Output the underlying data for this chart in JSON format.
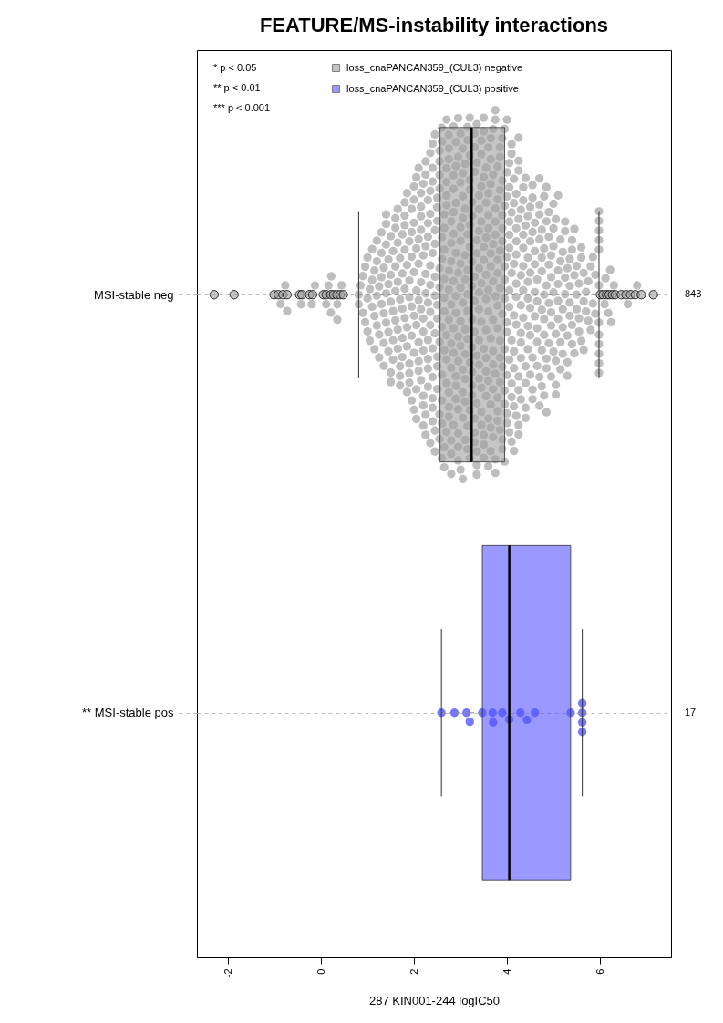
{
  "chart_data": {
    "type": "box",
    "orientation": "horizontal",
    "title": "FEATURE/MS-instability interactions",
    "xlabel": "287 KIN001-244 logIC50",
    "categories": [
      "MSI-stable neg",
      "** MSI-stable pos"
    ],
    "xlim": [
      -2.67,
      7.53
    ],
    "xticks": [
      -2,
      0,
      2,
      4,
      6
    ],
    "grid": "y",
    "legend": "top",
    "marker": "circle",
    "annotations": [
      "* p < 0.05",
      "** p < 0.01",
      "*** p < 0.001",
      "843",
      "17"
    ],
    "series": [
      {
        "name": "loss_cnaPANCAN359_(CUL3) negative",
        "color": "#a0a0a0",
        "boxes": [
          {
            "low": 0.81,
            "q1": 2.56,
            "median": 3.24,
            "q3": 3.95,
            "high": 5.98,
            "outliers": [
              -2.3,
              -1.87,
              -1.01,
              -0.92,
              -0.82,
              -0.73,
              -0.46,
              -0.41,
              -0.25,
              -0.18,
              0.05,
              0.11,
              0.21,
              0.27,
              0.34,
              0.41,
              0.48,
              6.01,
              6.07,
              6.14,
              6.2,
              6.27,
              6.33,
              6.46,
              6.56,
              6.66,
              6.76,
              6.89,
              7.15
            ]
          },
          null
        ]
      },
      {
        "name": "loss_cnaPANCAN359_(CUL3) positive",
        "color": "#5555ff",
        "boxes": [
          null,
          {
            "low": 2.59,
            "q1": 3.47,
            "median": 4.05,
            "q3": 5.37,
            "high": 5.62
          }
        ]
      },
      {
        "type": "scatter",
        "color": "#bebebe",
        "values": [
          -0.87,
          -0.77,
          -0.73,
          -0.43,
          -0.2,
          -0.13,
          0.11,
          0.16,
          0.21,
          0.22,
          0.35,
          0.35,
          0.44,
          0.81,
          0.81,
          0.85,
          0.9,
          0.9,
          0.95,
          0.95,
          1,
          1,
          1,
          1.05,
          1.05,
          1.1,
          1.1,
          1.1,
          1.15,
          1.15,
          1.15,
          1.2,
          1.2,
          1.2,
          1.2,
          1.25,
          1.25,
          1.25,
          1.3,
          1.3,
          1.3,
          1.3,
          1.35,
          1.35,
          1.35,
          1.35,
          1.4,
          1.4,
          1.4,
          1.4,
          1.4,
          1.45,
          1.45,
          1.45,
          1.45,
          1.5,
          1.5,
          1.5,
          1.5,
          1.5,
          1.55,
          1.55,
          1.55,
          1.55,
          1.6,
          1.6,
          1.6,
          1.6,
          1.6,
          1.65,
          1.65,
          1.65,
          1.65,
          1.65,
          1.7,
          1.7,
          1.7,
          1.7,
          1.7,
          1.75,
          1.75,
          1.75,
          1.75,
          1.75,
          1.8,
          1.8,
          1.8,
          1.8,
          1.8,
          1.8,
          1.85,
          1.85,
          1.85,
          1.85,
          1.85,
          1.9,
          1.9,
          1.9,
          1.9,
          1.9,
          1.9,
          1.95,
          1.95,
          1.95,
          1.95,
          1.95,
          1.95,
          2,
          2,
          2,
          2,
          2,
          2,
          2,
          2.05,
          2.05,
          2.05,
          2.05,
          2.05,
          2.05,
          2.1,
          2.1,
          2.1,
          2.1,
          2.1,
          2.1,
          2.1,
          2.15,
          2.15,
          2.15,
          2.15,
          2.15,
          2.15,
          2.15,
          2.2,
          2.2,
          2.2,
          2.2,
          2.2,
          2.2,
          2.2,
          2.2,
          2.25,
          2.25,
          2.25,
          2.25,
          2.25,
          2.25,
          2.25,
          2.3,
          2.3,
          2.3,
          2.3,
          2.3,
          2.3,
          2.3,
          2.3,
          2.35,
          2.35,
          2.35,
          2.35,
          2.35,
          2.35,
          2.35,
          2.35,
          2.4,
          2.4,
          2.4,
          2.4,
          2.4,
          2.4,
          2.4,
          2.4,
          2.4,
          2.45,
          2.45,
          2.45,
          2.45,
          2.45,
          2.45,
          2.45,
          2.45,
          2.5,
          2.5,
          2.5,
          2.5,
          2.5,
          2.5,
          2.5,
          2.5,
          2.55,
          2.55,
          2.55,
          2.55,
          2.55,
          2.55,
          2.55,
          2.55,
          2.55,
          2.6,
          2.6,
          2.6,
          2.6,
          2.6,
          2.6,
          2.6,
          2.6,
          2.6,
          2.65,
          2.65,
          2.65,
          2.65,
          2.65,
          2.65,
          2.65,
          2.65,
          2.65,
          2.7,
          2.7,
          2.7,
          2.7,
          2.7,
          2.7,
          2.7,
          2.7,
          2.7,
          2.75,
          2.75,
          2.75,
          2.75,
          2.75,
          2.75,
          2.75,
          2.75,
          2.75,
          2.8,
          2.8,
          2.8,
          2.8,
          2.8,
          2.8,
          2.8,
          2.8,
          2.8,
          2.85,
          2.85,
          2.85,
          2.85,
          2.85,
          2.85,
          2.85,
          2.85,
          2.85,
          2.9,
          2.9,
          2.9,
          2.9,
          2.9,
          2.9,
          2.9,
          2.9,
          2.9,
          2.95,
          2.95,
          2.95,
          2.95,
          2.95,
          2.95,
          2.95,
          2.95,
          2.95,
          3,
          3,
          3,
          3,
          3,
          3,
          3,
          3,
          3,
          3.05,
          3.05,
          3.05,
          3.05,
          3.05,
          3.05,
          3.05,
          3.05,
          3.05,
          3.1,
          3.1,
          3.1,
          3.1,
          3.1,
          3.1,
          3.1,
          3.1,
          3.1,
          3.15,
          3.15,
          3.15,
          3.15,
          3.15,
          3.15,
          3.15,
          3.15,
          3.15,
          3.2,
          3.2,
          3.2,
          3.2,
          3.2,
          3.2,
          3.2,
          3.2,
          3.2,
          3.25,
          3.25,
          3.25,
          3.25,
          3.25,
          3.25,
          3.25,
          3.25,
          3.25,
          3.3,
          3.3,
          3.3,
          3.3,
          3.3,
          3.3,
          3.3,
          3.3,
          3.3,
          3.35,
          3.35,
          3.35,
          3.35,
          3.35,
          3.35,
          3.35,
          3.35,
          3.35,
          3.4,
          3.4,
          3.4,
          3.4,
          3.4,
          3.4,
          3.4,
          3.4,
          3.4,
          3.45,
          3.45,
          3.45,
          3.45,
          3.45,
          3.45,
          3.45,
          3.45,
          3.45,
          3.5,
          3.5,
          3.5,
          3.5,
          3.5,
          3.5,
          3.5,
          3.5,
          3.5,
          3.55,
          3.55,
          3.55,
          3.55,
          3.55,
          3.55,
          3.55,
          3.55,
          3.55,
          3.6,
          3.6,
          3.6,
          3.6,
          3.6,
          3.6,
          3.6,
          3.6,
          3.6,
          3.65,
          3.65,
          3.65,
          3.65,
          3.65,
          3.65,
          3.65,
          3.65,
          3.65,
          3.7,
          3.7,
          3.7,
          3.7,
          3.7,
          3.7,
          3.7,
          3.7,
          3.7,
          3.75,
          3.75,
          3.75,
          3.75,
          3.75,
          3.75,
          3.75,
          3.75,
          3.75,
          3.8,
          3.8,
          3.8,
          3.8,
          3.8,
          3.8,
          3.8,
          3.8,
          3.8,
          3.85,
          3.85,
          3.85,
          3.85,
          3.85,
          3.85,
          3.85,
          3.85,
          3.85,
          3.9,
          3.9,
          3.9,
          3.9,
          3.9,
          3.9,
          3.9,
          3.9,
          3.9,
          3.95,
          3.95,
          3.95,
          3.95,
          3.95,
          3.95,
          3.95,
          3.95,
          3.95,
          4,
          4,
          4,
          4,
          4,
          4,
          4,
          4,
          4,
          4.05,
          4.05,
          4.05,
          4.05,
          4.05,
          4.05,
          4.05,
          4.05,
          4.05,
          4.1,
          4.1,
          4.1,
          4.1,
          4.1,
          4.1,
          4.1,
          4.1,
          4.15,
          4.15,
          4.15,
          4.15,
          4.15,
          4.15,
          4.15,
          4.15,
          4.2,
          4.2,
          4.2,
          4.2,
          4.2,
          4.2,
          4.2,
          4.2,
          4.25,
          4.25,
          4.25,
          4.25,
          4.25,
          4.25,
          4.25,
          4.25,
          4.3,
          4.3,
          4.3,
          4.3,
          4.3,
          4.3,
          4.3,
          4.35,
          4.35,
          4.35,
          4.35,
          4.35,
          4.35,
          4.35,
          4.4,
          4.4,
          4.4,
          4.4,
          4.4,
          4.4,
          4.45,
          4.45,
          4.45,
          4.45,
          4.45,
          4.45,
          4.5,
          4.5,
          4.5,
          4.5,
          4.5,
          4.5,
          4.55,
          4.55,
          4.55,
          4.55,
          4.55,
          4.55,
          4.6,
          4.6,
          4.6,
          4.6,
          4.6,
          4.65,
          4.65,
          4.65,
          4.65,
          4.65,
          4.7,
          4.7,
          4.7,
          4.7,
          4.7,
          4.7,
          4.75,
          4.75,
          4.75,
          4.75,
          4.75,
          4.75,
          4.8,
          4.8,
          4.8,
          4.8,
          4.8,
          4.8,
          4.85,
          4.85,
          4.85,
          4.85,
          4.85,
          4.85,
          4.9,
          4.9,
          4.9,
          4.9,
          4.9,
          4.95,
          4.95,
          4.95,
          4.95,
          4.95,
          5,
          5,
          5,
          5,
          5,
          5.05,
          5.05,
          5.05,
          5.05,
          5.05,
          5.1,
          5.1,
          5.1,
          5.1,
          5.1,
          5.15,
          5.15,
          5.15,
          5.15,
          5.2,
          5.2,
          5.2,
          5.2,
          5.25,
          5.25,
          5.25,
          5.25,
          5.3,
          5.3,
          5.3,
          5.3,
          5.35,
          5.35,
          5.35,
          5.35,
          5.4,
          5.4,
          5.4,
          5.4,
          5.45,
          5.45,
          5.45,
          5.5,
          5.5,
          5.5,
          5.55,
          5.55,
          5.55,
          5.6,
          5.6,
          5.6,
          5.65,
          5.65,
          5.65,
          5.7,
          5.7,
          5.75,
          5.75,
          5.8,
          5.8,
          5.85,
          5.85,
          5.9,
          5.9,
          5.98,
          5.98,
          5.98,
          5.98,
          5.98,
          5.98,
          5.98,
          5.98,
          5.98,
          5.98,
          5.98,
          5.98,
          6.1,
          6.12,
          6.18,
          6.22,
          6.24,
          6.3,
          6.6,
          6.8
        ],
        "x": [
          "MSI-stable neg",
          "MSI-stable neg",
          "MSI-stable neg",
          "MSI-stable neg",
          "MSI-stable neg",
          "MSI-stable neg",
          "MSI-stable neg",
          "MSI-stable neg",
          "MSI-stable neg",
          "MSI-stable neg",
          "MSI-stable neg",
          "MSI-stable neg",
          "MSI-stable neg",
          "MSI-stable neg",
          "MSI-stable neg",
          "MSI-stable neg",
          "MSI-stable neg",
          "MSI-stable neg",
          "MSI-stable neg",
          "MSI-stable neg",
          "MSI-stable neg",
          "MSI-stable neg",
          "MSI-stable neg",
          "MSI-stable neg",
          "MSI-stable neg",
          "MSI-stable neg",
          "MSI-stable neg",
          "MSI-stable neg",
          "MSI-stable neg",
          "MSI-stable neg",
          "MSI-stable neg",
          "MSI-stable neg",
          "MSI-stable neg",
          "MSI-stable neg",
          "MSI-stable neg",
          "MSI-stable neg",
          "MSI-stable neg",
          "MSI-stable neg",
          "MSI-stable neg",
          "MSI-stable neg",
          "MSI-stable neg",
          "MSI-stable neg",
          "MSI-stable neg",
          "MSI-stable neg",
          "MSI-stable neg",
          "MSI-stable neg",
          "MSI-stable neg",
          "MSI-stable neg",
          "MSI-stable neg",
          "MSI-stable neg",
          "MSI-stable neg",
          "MSI-stable neg",
          "MSI-stable neg",
          "MSI-stable neg",
          "MSI-stable neg",
          "MSI-stable neg",
          "MSI-stable neg",
          "MSI-stable neg",
          "MSI-stable neg",
          "MSI-stable neg",
          "MSI-stable neg",
          "MSI-stable neg",
          "MSI-stable neg",
          "MSI-stable neg",
          "MSI-stable neg",
          "MSI-stable neg",
          "MSI-stable neg",
          "MSI-stable neg",
          "MSI-stable neg",
          "MSI-stable neg",
          "MSI-stable neg",
          "MSI-stable neg",
          "MSI-stable neg",
          "MSI-stable neg",
          "MSI-stable neg",
          "MSI-stable neg",
          "MSI-stable neg",
          "MSI-stable neg",
          "MSI-stable neg",
          "MSI-stable neg",
          "MSI-stable neg",
          "MSI-stable neg",
          "MSI-stable neg",
          "MSI-stable neg",
          "MSI-stable neg",
          "MSI-stable neg",
          "MSI-stable neg",
          "MSI-stable neg",
          "MSI-stable neg",
          "MSI-stable neg",
          "MSI-stable neg",
          "MSI-stable neg",
          "MSI-stable neg",
          "MSI-stable neg",
          "MSI-stable neg",
          "MSI-stable neg",
          "MSI-stable neg",
          "MSI-stable neg",
          "MSI-stable neg",
          "MSI-stable neg",
          "MSI-stable neg",
          "MSI-stable neg",
          "MSI-stable neg",
          "MSI-stable neg",
          "MSI-stable neg",
          "MSI-stable neg",
          "MSI-stable neg",
          "MSI-stable neg",
          "MSI-stable neg",
          "MSI-stable neg",
          "MSI-stable neg",
          "MSI-stable neg",
          "MSI-stable neg",
          "MSI-stable neg",
          "MSI-stable neg",
          "MSI-stable neg",
          "MSI-stable neg",
          "MSI-stable neg",
          "MSI-stable neg",
          "MSI-stable neg",
          "MSI-stable neg",
          "MSI-stable neg",
          "MSI-stable neg",
          "MSI-stable neg",
          "MSI-stable neg",
          "MSI-stable neg",
          "MSI-stable neg",
          "MSI-stable neg",
          "MSI-stable neg",
          "MSI-stable neg",
          "MSI-stable neg",
          "MSI-stable neg",
          "MSI-stable neg",
          "MSI-stable neg",
          "MSI-stable neg",
          "MSI-stable neg",
          "MSI-stable neg",
          "MSI-stable neg",
          "MSI-stable neg",
          "MSI-stable neg",
          "MSI-stable neg",
          "MSI-stable neg",
          "MSI-stable neg",
          "MSI-stable neg",
          "MSI-stable neg",
          "MSI-stable neg",
          "MSI-stable neg",
          "MSI-stable neg",
          "MSI-stable neg",
          "MSI-stable neg",
          "MSI-stable neg",
          "MSI-stable neg",
          "MSI-stable neg",
          "MSI-stable neg",
          "MSI-stable neg",
          "MSI-stable neg",
          "MSI-stable neg",
          "MSI-stable neg",
          "MSI-stable neg",
          "MSI-stable neg",
          "MSI-stable neg",
          "MSI-stable neg",
          "MSI-stable neg",
          "MSI-stable neg",
          "MSI-stable neg",
          "MSI-stable neg",
          "MSI-stable neg",
          "MSI-stable neg",
          "MSI-stable neg",
          "MSI-stable neg",
          "MSI-stable neg",
          "MSI-stable neg",
          "MSI-stable neg",
          "MSI-stable neg",
          "MSI-stable neg",
          "MSI-stable neg",
          "MSI-stable neg",
          "MSI-stable neg",
          "MSI-stable neg",
          "MSI-stable neg",
          "MSI-stable neg",
          "MSI-stable neg",
          "MSI-stable neg",
          "MSI-stable neg",
          "MSI-stable neg",
          "MSI-stable neg",
          "MSI-stable neg",
          "MSI-stable neg",
          "MSI-stable neg",
          "MSI-stable neg",
          "MSI-stable neg",
          "MSI-stable neg",
          "MSI-stable neg",
          "MSI-stable neg",
          "MSI-stable neg",
          "MSI-stable neg",
          "MSI-stable neg",
          "MSI-stable neg",
          "MSI-stable neg",
          "MSI-stable neg",
          "MSI-stable neg",
          "MSI-stable neg",
          "MSI-stable neg",
          "MSI-stable neg",
          "MSI-stable neg",
          "MSI-stable neg",
          "MSI-stable neg",
          "MSI-stable neg",
          "MSI-stable neg",
          "MSI-stable neg",
          "MSI-stable neg",
          "MSI-stable neg",
          "MSI-stable neg",
          "MSI-stable neg",
          "MSI-stable neg",
          "MSI-stable neg",
          "MSI-stable neg",
          "MSI-stable neg",
          "MSI-stable neg",
          "MSI-stable neg",
          "MSI-stable neg",
          "MSI-stable neg",
          "MSI-stable neg",
          "MSI-stable neg",
          "MSI-stable neg",
          "MSI-stable neg",
          "MSI-stable neg",
          "MSI-stable neg",
          "MSI-stable neg",
          "MSI-stable neg",
          "MSI-stable neg",
          "MSI-stable neg",
          "MSI-stable neg",
          "MSI-stable neg",
          "MSI-stable neg",
          "MSI-stable neg",
          "MSI-stable neg",
          "MSI-stable neg",
          "MSI-stable neg",
          "MSI-stable neg",
          "MSI-stable neg",
          "MSI-stable neg",
          "MSI-stable neg",
          "MSI-stable neg",
          "MSI-stable neg",
          "MSI-stable neg",
          "MSI-stable neg",
          "MSI-stable neg",
          "MSI-stable neg",
          "MSI-stable neg",
          "MSI-stable neg",
          "MSI-stable neg",
          "MSI-stable neg",
          "MSI-stable neg",
          "MSI-stable neg",
          "MSI-stable neg",
          "MSI-stable neg",
          "MSI-stable neg",
          "MSI-stable neg",
          "MSI-stable neg",
          "MSI-stable neg",
          "MSI-stable neg",
          "MSI-stable neg",
          "MSI-stable neg",
          "MSI-stable neg",
          "MSI-stable neg",
          "MSI-stable neg",
          "MSI-stable neg",
          "MSI-stable neg",
          "MSI-stable neg",
          "MSI-stable neg",
          "MSI-stable neg",
          "MSI-stable neg",
          "MSI-stable neg",
          "MSI-stable neg",
          "MSI-stable neg",
          "MSI-stable neg",
          "MSI-stable neg",
          "MSI-stable neg",
          "MSI-stable neg",
          "MSI-stable neg",
          "MSI-stable neg",
          "MSI-stable neg",
          "MSI-stable neg",
          "MSI-stable neg",
          "MSI-stable neg",
          "MSI-stable neg",
          "MSI-stable neg",
          "MSI-stable neg",
          "MSI-stable neg",
          "MSI-stable neg",
          "MSI-stable neg",
          "MSI-stable neg",
          "MSI-stable neg",
          "MSI-stable neg",
          "MSI-stable neg",
          "MSI-stable neg",
          "MSI-stable neg",
          "MSI-stable neg",
          "MSI-stable neg",
          "MSI-stable neg",
          "MSI-stable neg",
          "MSI-stable neg",
          "MSI-stable neg",
          "MSI-stable neg",
          "MSI-stable neg",
          "MSI-stable neg",
          "MSI-stable neg",
          "MSI-stable neg",
          "MSI-stable neg",
          "MSI-stable neg",
          "MSI-stable neg",
          "MSI-stable neg",
          "MSI-stable neg",
          "MSI-stable neg",
          "MSI-stable neg",
          "MSI-stable neg",
          "MSI-stable neg",
          "MSI-stable neg",
          "MSI-stable neg",
          "MSI-stable neg",
          "MSI-stable neg",
          "MSI-stable neg",
          "MSI-stable neg",
          "MSI-stable neg",
          "MSI-stable neg",
          "MSI-stable neg",
          "MSI-stable neg",
          "MSI-stable neg",
          "MSI-stable neg",
          "MSI-stable neg",
          "MSI-stable neg",
          "MSI-stable neg",
          "MSI-stable neg",
          "MSI-stable neg",
          "MSI-stable neg",
          "MSI-stable neg",
          "MSI-stable neg",
          "MSI-stable neg",
          "MSI-stable neg",
          "MSI-stable neg",
          "MSI-stable neg",
          "MSI-stable neg",
          "MSI-stable neg",
          "MSI-stable neg",
          "MSI-stable neg",
          "MSI-stable neg",
          "MSI-stable neg",
          "MSI-stable neg",
          "MSI-stable neg",
          "MSI-stable neg",
          "MSI-stable neg",
          "MSI-stable neg",
          "MSI-stable neg",
          "MSI-stable neg",
          "MSI-stable neg",
          "MSI-stable neg",
          "MSI-stable neg",
          "MSI-stable neg",
          "MSI-stable neg",
          "MSI-stable neg",
          "MSI-stable neg",
          "MSI-stable neg",
          "MSI-stable neg",
          "MSI-stable neg",
          "MSI-stable neg",
          "MSI-stable neg",
          "MSI-stable neg",
          "MSI-stable neg",
          "MSI-stable neg",
          "MSI-stable neg",
          "MSI-stable neg",
          "MSI-stable neg",
          "MSI-stable neg",
          "MSI-stable neg",
          "MSI-stable neg",
          "MSI-stable neg",
          "MSI-stable neg",
          "MSI-stable neg",
          "MSI-stable neg",
          "MSI-stable neg",
          "MSI-stable neg",
          "MSI-stable neg",
          "MSI-stable neg",
          "MSI-stable neg",
          "MSI-stable neg",
          "MSI-stable neg",
          "MSI-stable neg",
          "MSI-stable neg",
          "MSI-stable neg",
          "MSI-stable neg",
          "MSI-stable neg",
          "MSI-stable neg",
          "MSI-stable neg",
          "MSI-stable neg",
          "MSI-stable neg",
          "MSI-stable neg",
          "MSI-stable neg",
          "MSI-stable neg",
          "MSI-stable neg",
          "MSI-stable neg",
          "MSI-stable neg",
          "MSI-stable neg",
          "MSI-stable neg",
          "MSI-stable neg",
          "MSI-stable neg",
          "MSI-stable neg",
          "MSI-stable neg",
          "MSI-stable neg",
          "MSI-stable neg",
          "MSI-stable neg",
          "MSI-stable neg",
          "MSI-stable neg",
          "MSI-stable neg",
          "MSI-stable neg",
          "MSI-stable neg",
          "MSI-stable neg",
          "MSI-stable neg",
          "MSI-stable neg",
          "MSI-stable neg",
          "MSI-stable neg",
          "MSI-stable neg",
          "MSI-stable neg",
          "MSI-stable neg",
          "MSI-stable neg",
          "MSI-stable neg",
          "MSI-stable neg",
          "MSI-stable neg",
          "MSI-stable neg",
          "MSI-stable neg",
          "MSI-stable neg",
          "MSI-stable neg",
          "MSI-stable neg",
          "MSI-stable neg",
          "MSI-stable neg",
          "MSI-stable neg",
          "MSI-stable neg",
          "MSI-stable neg",
          "MSI-stable neg",
          "MSI-stable neg",
          "MSI-stable neg",
          "MSI-stable neg",
          "MSI-stable neg",
          "MSI-stable neg",
          "MSI-stable neg",
          "MSI-stable neg",
          "MSI-stable neg",
          "MSI-stable neg",
          "MSI-stable neg",
          "MSI-stable neg",
          "MSI-stable neg",
          "MSI-stable neg",
          "MSI-stable neg",
          "MSI-stable neg",
          "MSI-stable neg",
          "MSI-stable neg",
          "MSI-stable neg",
          "MSI-stable neg",
          "MSI-stable neg",
          "MSI-stable neg",
          "MSI-stable neg",
          "MSI-stable neg",
          "MSI-stable neg",
          "MSI-stable neg",
          "MSI-stable neg",
          "MSI-stable neg",
          "MSI-stable neg",
          "MSI-stable neg",
          "MSI-stable neg",
          "MSI-stable neg",
          "MSI-stable neg",
          "MSI-stable neg",
          "MSI-stable neg",
          "MSI-stable neg",
          "MSI-stable neg",
          "MSI-stable neg",
          "MSI-stable neg",
          "MSI-stable neg",
          "MSI-stable neg",
          "MSI-stable neg",
          "MSI-stable neg",
          "MSI-stable neg",
          "MSI-stable neg",
          "MSI-stable neg",
          "MSI-stable neg",
          "MSI-stable neg",
          "MSI-stable neg",
          "MSI-stable neg",
          "MSI-stable neg",
          "MSI-stable neg",
          "MSI-stable neg",
          "MSI-stable neg",
          "MSI-stable neg",
          "MSI-stable neg",
          "MSI-stable neg",
          "MSI-stable neg",
          "MSI-stable neg",
          "MSI-stable neg",
          "MSI-stable neg",
          "MSI-stable neg",
          "MSI-stable neg",
          "MSI-stable neg",
          "MSI-stable neg",
          "MSI-stable neg",
          "MSI-stable neg",
          "MSI-stable neg",
          "MSI-stable neg",
          "MSI-stable neg",
          "MSI-stable neg",
          "MSI-stable neg",
          "MSI-stable neg",
          "MSI-stable neg",
          "MSI-stable neg",
          "MSI-stable neg",
          "MSI-stable neg",
          "MSI-stable neg",
          "MSI-stable neg",
          "MSI-stable neg",
          "MSI-stable neg",
          "MSI-stable neg",
          "MSI-stable neg",
          "MSI-stable neg",
          "MSI-stable neg",
          "MSI-stable neg",
          "MSI-stable neg",
          "MSI-stable neg",
          "MSI-stable neg",
          "MSI-stable neg",
          "MSI-stable neg",
          "MSI-stable neg",
          "MSI-stable neg",
          "MSI-stable neg",
          "MSI-stable neg",
          "MSI-stable neg",
          "MSI-stable neg",
          "MSI-stable neg",
          "MSI-stable neg",
          "MSI-stable neg",
          "MSI-stable neg",
          "MSI-stable neg",
          "MSI-stable neg",
          "MSI-stable neg",
          "MSI-stable neg",
          "MSI-stable neg",
          "MSI-stable neg",
          "MSI-stable neg",
          "MSI-stable neg",
          "MSI-stable neg",
          "MSI-stable neg",
          "MSI-stable neg",
          "MSI-stable neg",
          "MSI-stable neg",
          "MSI-stable neg",
          "MSI-stable neg",
          "MSI-stable neg",
          "MSI-stable neg",
          "MSI-stable neg",
          "MSI-stable neg",
          "MSI-stable neg",
          "MSI-stable neg",
          "MSI-stable neg",
          "MSI-stable neg",
          "MSI-stable neg",
          "MSI-stable neg",
          "MSI-stable neg",
          "MSI-stable neg",
          "MSI-stable neg",
          "MSI-stable neg",
          "MSI-stable neg",
          "MSI-stable neg",
          "MSI-stable neg",
          "MSI-stable neg",
          "MSI-stable neg",
          "MSI-stable neg",
          "MSI-stable neg",
          "MSI-stable neg",
          "MSI-stable neg",
          "MSI-stable neg",
          "MSI-stable neg",
          "MSI-stable neg",
          "MSI-stable neg",
          "MSI-stable neg",
          "MSI-stable neg",
          "MSI-stable neg",
          "MSI-stable neg",
          "MSI-stable neg",
          "MSI-stable neg",
          "MSI-stable neg",
          "MSI-stable neg",
          "MSI-stable neg",
          "MSI-stable neg",
          "MSI-stable neg",
          "MSI-stable neg",
          "MSI-stable neg",
          "MSI-stable neg",
          "MSI-stable neg",
          "MSI-stable neg",
          "MSI-stable neg",
          "MSI-stable neg",
          "MSI-stable neg",
          "MSI-stable neg",
          "MSI-stable neg",
          "MSI-stable neg",
          "MSI-stable neg",
          "MSI-stable neg",
          "MSI-stable neg",
          "MSI-stable neg",
          "MSI-stable neg",
          "MSI-stable neg",
          "MSI-stable neg",
          "MSI-stable neg",
          "MSI-stable neg",
          "MSI-stable neg",
          "MSI-stable neg",
          "MSI-stable neg",
          "MSI-stable neg",
          "MSI-stable neg",
          "MSI-stable neg",
          "MSI-stable neg",
          "MSI-stable neg",
          "MSI-stable neg",
          "MSI-stable neg",
          "MSI-stable neg",
          "MSI-stable neg",
          "MSI-stable neg",
          "MSI-stable neg",
          "MSI-stable neg",
          "MSI-stable neg",
          "MSI-stable neg",
          "MSI-stable neg",
          "MSI-stable neg",
          "MSI-stable neg",
          "MSI-stable neg",
          "MSI-stable neg",
          "MSI-stable neg",
          "MSI-stable neg",
          "MSI-stable neg",
          "MSI-stable neg",
          "MSI-stable neg",
          "MSI-stable neg",
          "MSI-stable neg",
          "MSI-stable neg",
          "MSI-stable neg",
          "MSI-stable neg",
          "MSI-stable neg",
          "MSI-stable neg",
          "MSI-stable neg",
          "MSI-stable neg",
          "MSI-stable neg",
          "MSI-stable neg",
          "MSI-stable neg",
          "MSI-stable neg",
          "MSI-stable neg",
          "MSI-stable neg",
          "MSI-stable neg",
          "MSI-stable neg",
          "MSI-stable neg",
          "MSI-stable neg",
          "MSI-stable neg",
          "MSI-stable neg",
          "MSI-stable neg",
          "MSI-stable neg",
          "MSI-stable neg",
          "MSI-stable neg",
          "MSI-stable neg",
          "MSI-stable neg",
          "MSI-stable neg"
        ]
      },
      {
        "type": "scatter",
        "color": "#7777ff",
        "values": [
          2.59,
          2.87,
          3.13,
          3.2,
          3.47,
          3.69,
          3.7,
          3.9,
          4.05,
          4.29,
          4.43,
          4.6,
          5.37,
          5.62,
          5.62,
          5.62,
          5.62
        ],
        "x": [
          "** MSI-stable pos",
          "** MSI-stable pos",
          "** MSI-stable pos",
          "** MSI-stable pos",
          "** MSI-stable pos",
          "** MSI-stable pos",
          "** MSI-stable pos",
          "** MSI-stable pos",
          "** MSI-stable pos",
          "** MSI-stable pos",
          "** MSI-stable pos",
          "** MSI-stable pos",
          "** MSI-stable pos",
          "** MSI-stable pos",
          "** MSI-stable pos",
          "** MSI-stable pos",
          "** MSI-stable pos"
        ]
      }
    ]
  }
}
